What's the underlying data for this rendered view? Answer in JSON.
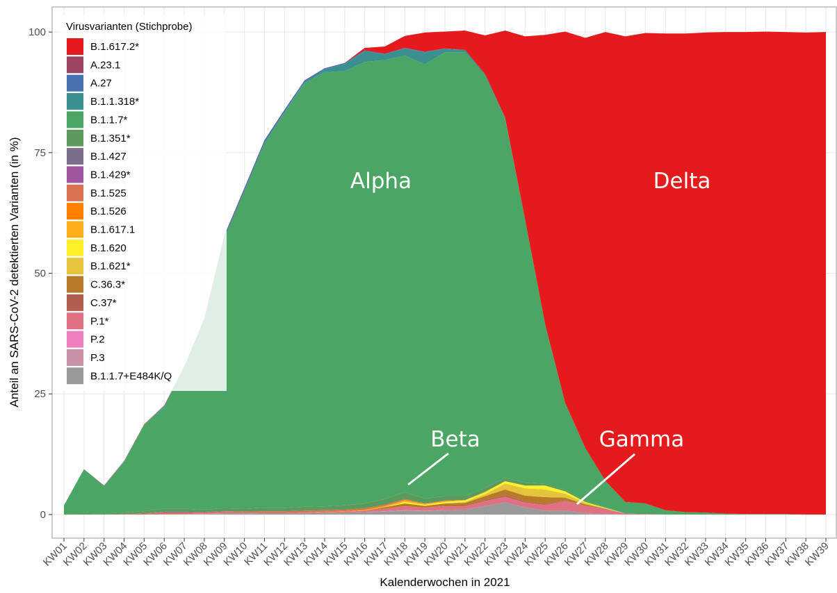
{
  "chart_data": {
    "type": "area",
    "stacked": true,
    "grid": true,
    "legend_position": "top-left",
    "legend_title": "Virusvarianten (Stichprobe)",
    "x_label": "Kalenderwochen in 2021",
    "y_label": "Anteil an SARS-CoV-2 detektierten Varianten (in %)",
    "annotations": [
      "Alpha",
      "Delta",
      "Beta",
      "Gamma"
    ],
    "ylim": [
      -4.9,
      105.2
    ],
    "yticks": [
      0,
      25,
      50,
      75,
      100
    ],
    "categories": [
      "KW01",
      "KW02",
      "KW03",
      "KW04",
      "KW05",
      "KW06",
      "KW07",
      "KW08",
      "KW09",
      "KW10",
      "KW11",
      "KW12",
      "KW13",
      "KW14",
      "KW15",
      "KW16",
      "KW17",
      "KW18",
      "KW19",
      "KW20",
      "KW21",
      "KW22",
      "KW23",
      "KW24",
      "KW25",
      "KW26",
      "KW27",
      "KW28",
      "KW29",
      "KW30",
      "KW31",
      "KW32",
      "KW33",
      "KW34",
      "KW35",
      "KW36",
      "KW37",
      "KW38",
      "KW39"
    ],
    "series": [
      {
        "name": "B.1.617.2*",
        "color": "#e41a1c",
        "values": [
          0,
          0,
          0,
          0,
          0,
          0,
          0,
          0,
          0,
          0,
          0,
          0,
          0,
          0,
          0,
          0.5,
          1.5,
          2.5,
          4,
          3.5,
          4,
          8,
          18,
          38,
          60,
          77,
          85,
          93,
          96.5,
          97.5,
          98.8,
          99.2,
          99.5,
          99.8,
          99.9,
          100,
          99.9,
          99.9,
          100
        ]
      },
      {
        "name": "A.23.1",
        "color": "#9b4463",
        "values": [
          0,
          0,
          0.1,
          0.1,
          0.1,
          0.1,
          0.1,
          0.1,
          0.1,
          0.1,
          0,
          0,
          0,
          0,
          0,
          0,
          0,
          0,
          0,
          0,
          0,
          0,
          0,
          0,
          0,
          0,
          0,
          0,
          0,
          0,
          0,
          0,
          0,
          0,
          0,
          0,
          0,
          0,
          0
        ]
      },
      {
        "name": "A.27",
        "color": "#4b72b0",
        "values": [
          0,
          0,
          0,
          0,
          0,
          0.1,
          0.2,
          0.3,
          0.5,
          0.6,
          0.6,
          0.5,
          0.4,
          0.3,
          0.2,
          0.2,
          0.1,
          0.1,
          0.1,
          0.1,
          0,
          0,
          0,
          0,
          0,
          0,
          0,
          0,
          0,
          0,
          0,
          0,
          0,
          0,
          0,
          0,
          0,
          0,
          0
        ]
      },
      {
        "name": "B.1.1.318*",
        "color": "#3a8f8f",
        "values": [
          0,
          0,
          0,
          0,
          0,
          0,
          0,
          0,
          0,
          0,
          0,
          0,
          0.2,
          0.5,
          1.5,
          2.2,
          1.2,
          1.5,
          2.5,
          0.7,
          0.5,
          0.3,
          0.2,
          0,
          0,
          0,
          0,
          0,
          0,
          0,
          0,
          0,
          0,
          0,
          0,
          0,
          0,
          0,
          0
        ]
      },
      {
        "name": "B.1.1.7*",
        "color": "#4ba665",
        "values": [
          1.7,
          9.1,
          5.7,
          10.6,
          17.9,
          21.2,
          29.2,
          39.2,
          56,
          65.8,
          75.6,
          82,
          87.8,
          90,
          90,
          91.5,
          91,
          90.5,
          90,
          92,
          92,
          85.5,
          74.5,
          54.5,
          33,
          18,
          11,
          5.5,
          2.4,
          2.2,
          0.9,
          0.5,
          0.4,
          0.2,
          0.1,
          0.1,
          0.1,
          0,
          0
        ]
      },
      {
        "name": "B.1.351*",
        "color": "#5b9a5c",
        "values": [
          0.2,
          0.3,
          0.2,
          0.3,
          0.4,
          0.6,
          0.6,
          0.5,
          0.6,
          0.6,
          0.7,
          0.7,
          0.8,
          0.8,
          0.9,
          1,
          1.2,
          1.4,
          1,
          0.9,
          0.8,
          0.8,
          0.7,
          0.6,
          0.4,
          0.3,
          0.2,
          0.1,
          0,
          0,
          0,
          0,
          0,
          0,
          0,
          0,
          0,
          0,
          0
        ]
      },
      {
        "name": "B.1.427",
        "color": "#7a6e8a",
        "values": [
          0,
          0,
          0,
          0,
          0.1,
          0.1,
          0.1,
          0,
          0,
          0,
          0,
          0,
          0,
          0,
          0,
          0,
          0,
          0,
          0,
          0,
          0,
          0,
          0,
          0,
          0,
          0,
          0,
          0,
          0,
          0,
          0,
          0,
          0,
          0,
          0,
          0,
          0,
          0,
          0
        ]
      },
      {
        "name": "B.1.429*",
        "color": "#a0569e",
        "values": [
          0,
          0,
          0,
          0,
          0,
          0.1,
          0.1,
          0.1,
          0.1,
          0,
          0,
          0,
          0,
          0,
          0,
          0,
          0,
          0,
          0,
          0,
          0,
          0,
          0,
          0,
          0,
          0,
          0,
          0,
          0,
          0,
          0,
          0,
          0,
          0,
          0,
          0,
          0,
          0,
          0
        ]
      },
      {
        "name": "B.1.525",
        "color": "#d9704f",
        "values": [
          0,
          0,
          0,
          0.1,
          0.2,
          0.3,
          0.3,
          0.2,
          0.3,
          0.3,
          0.4,
          0.4,
          0.4,
          0.3,
          0.3,
          0.3,
          0.2,
          0.2,
          0.1,
          0.1,
          0,
          0,
          0,
          0,
          0,
          0,
          0,
          0,
          0,
          0,
          0,
          0,
          0,
          0,
          0,
          0,
          0,
          0,
          0
        ]
      },
      {
        "name": "B.1.526",
        "color": "#ff7f00",
        "values": [
          0,
          0,
          0,
          0,
          0,
          0,
          0,
          0,
          0,
          0,
          0,
          0,
          0,
          0.1,
          0.1,
          0.1,
          0.1,
          0.1,
          0,
          0,
          0,
          0,
          0,
          0,
          0,
          0,
          0,
          0,
          0,
          0,
          0,
          0,
          0,
          0,
          0,
          0,
          0,
          0,
          0
        ]
      },
      {
        "name": "B.1.617.1",
        "color": "#ffae1a",
        "values": [
          0,
          0,
          0,
          0,
          0,
          0,
          0,
          0,
          0,
          0,
          0,
          0,
          0,
          0,
          0,
          0.1,
          0.2,
          0.3,
          0.2,
          0.2,
          0.1,
          0.1,
          0,
          0,
          0,
          0,
          0,
          0,
          0,
          0,
          0,
          0,
          0,
          0,
          0,
          0,
          0,
          0,
          0
        ]
      },
      {
        "name": "B.1.620",
        "color": "#fff02a",
        "values": [
          0,
          0,
          0,
          0,
          0,
          0,
          0,
          0,
          0,
          0,
          0,
          0,
          0,
          0,
          0,
          0,
          0,
          0.3,
          0.2,
          0.3,
          0.3,
          0.4,
          0.5,
          0.6,
          0.8,
          0.5,
          0.2,
          0.1,
          0,
          0,
          0,
          0,
          0,
          0,
          0,
          0,
          0,
          0,
          0
        ]
      },
      {
        "name": "B.1.621*",
        "color": "#e3c43a",
        "values": [
          0,
          0,
          0,
          0,
          0,
          0,
          0,
          0,
          0,
          0,
          0,
          0,
          0,
          0,
          0,
          0,
          0,
          0,
          0,
          0,
          0.2,
          0.4,
          1.2,
          1.5,
          1.6,
          0.8,
          0.3,
          0.1,
          0,
          0,
          0,
          0,
          0,
          0,
          0,
          0,
          0,
          0,
          0
        ]
      },
      {
        "name": "C.36.3*",
        "color": "#b67a2a",
        "values": [
          0,
          0,
          0,
          0,
          0,
          0,
          0,
          0,
          0,
          0,
          0,
          0,
          0,
          0,
          0,
          0,
          0.3,
          0.6,
          0.4,
          0.5,
          0.6,
          0.8,
          1.2,
          1.2,
          1.4,
          0.6,
          0.3,
          0.1,
          0,
          0,
          0,
          0,
          0,
          0,
          0,
          0,
          0,
          0,
          0
        ]
      },
      {
        "name": "C.37*",
        "color": "#b25e4d",
        "values": [
          0,
          0,
          0,
          0,
          0,
          0,
          0,
          0,
          0,
          0,
          0,
          0,
          0,
          0,
          0,
          0,
          0,
          0,
          0,
          0.1,
          0.1,
          0.2,
          0.3,
          0.2,
          0.2,
          0.1,
          0,
          0,
          0,
          0,
          0,
          0,
          0,
          0,
          0,
          0,
          0,
          0,
          0
        ]
      },
      {
        "name": "P.1*",
        "color": "#e07185",
        "values": [
          0,
          0,
          0,
          0,
          0,
          0,
          0,
          0,
          0,
          0,
          0,
          0,
          0.1,
          0.1,
          0.2,
          0.3,
          0.5,
          0.8,
          0.6,
          0.8,
          0.7,
          1,
          1.2,
          1,
          1.2,
          2,
          1.5,
          1,
          0.2,
          0.1,
          0,
          0,
          0,
          0,
          0,
          0,
          0,
          0,
          0
        ]
      },
      {
        "name": "P.2",
        "color": "#f07fc0",
        "values": [
          0,
          0,
          0,
          0,
          0,
          0,
          0,
          0.1,
          0.1,
          0.1,
          0,
          0,
          0,
          0,
          0,
          0,
          0,
          0,
          0,
          0,
          0,
          0,
          0,
          0,
          0,
          0,
          0,
          0,
          0,
          0,
          0,
          0,
          0,
          0,
          0,
          0,
          0,
          0,
          0
        ]
      },
      {
        "name": "P.3",
        "color": "#c890a6",
        "values": [
          0,
          0,
          0,
          0,
          0,
          0,
          0,
          0,
          0,
          0,
          0,
          0,
          0,
          0,
          0,
          0,
          0.1,
          0.1,
          0.1,
          0,
          0,
          0,
          0,
          0,
          0,
          0,
          0,
          0,
          0,
          0,
          0,
          0,
          0,
          0,
          0,
          0,
          0,
          0,
          0
        ]
      },
      {
        "name": "B.1.1.7+E484K/Q",
        "color": "#999999",
        "values": [
          0,
          0,
          0,
          0,
          0,
          0.1,
          0.1,
          0.1,
          0.2,
          0.2,
          0.3,
          0.3,
          0.3,
          0.4,
          0.4,
          0.5,
          0.6,
          0.8,
          0.7,
          0.9,
          1,
          1.8,
          2.5,
          1.5,
          0.8,
          0.8,
          0.3,
          0.1,
          0,
          0,
          0,
          0,
          0,
          0,
          0,
          0,
          0,
          0,
          0
        ]
      }
    ]
  }
}
